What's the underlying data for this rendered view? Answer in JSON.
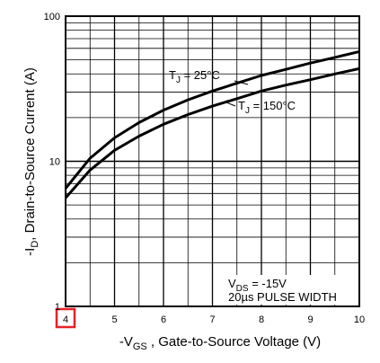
{
  "chart_data": {
    "type": "line",
    "title": "",
    "xlabel": "-V_GS , Gate-to-Source Voltage (V)",
    "ylabel": "-I_D , Drain-to-Source Current (A)",
    "xlim": [
      4,
      10
    ],
    "ylim": [
      1,
      100
    ],
    "yscale": "log",
    "grid": true,
    "x_ticks": [
      "4",
      "5",
      "6",
      "7",
      "8",
      "9",
      "10"
    ],
    "y_ticks": [
      "1",
      "10",
      "100"
    ],
    "highlighted_tick": "4",
    "series": [
      {
        "name": "T_J = 25°C",
        "x": [
          4,
          4.5,
          5,
          5.5,
          6,
          6.5,
          7,
          7.5,
          8,
          8.5,
          9,
          9.5,
          10
        ],
        "y": [
          6.5,
          10.5,
          14.5,
          18.5,
          22.5,
          26.5,
          30.5,
          34.5,
          39.0,
          43.0,
          47.5,
          52.0,
          57.0
        ]
      },
      {
        "name": "T_J = 150°C",
        "x": [
          4,
          4.5,
          5,
          5.5,
          6,
          6.5,
          7,
          7.5,
          8,
          8.5,
          9,
          9.5,
          10
        ],
        "y": [
          5.6,
          8.7,
          11.9,
          14.9,
          18.0,
          21.0,
          24.0,
          27.0,
          30.5,
          33.5,
          36.5,
          40.0,
          43.5
        ]
      }
    ],
    "annotations": {
      "tj25": "T_J = 25°C",
      "tj150": "T_J = 150°C",
      "vds": "V_DS = -15V",
      "pulse": "20µs PULSE WIDTH"
    }
  }
}
